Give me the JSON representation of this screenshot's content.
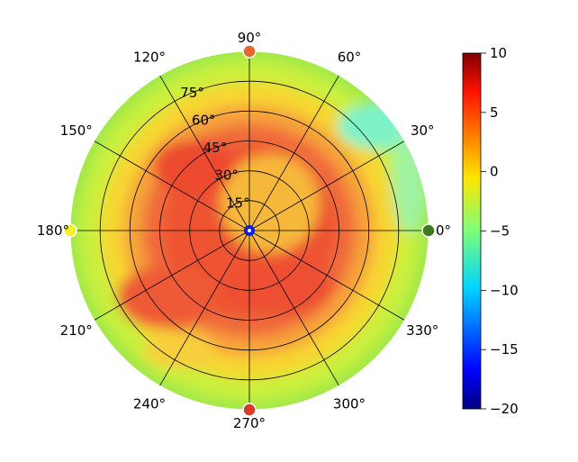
{
  "chart_data": {
    "type": "heatmap",
    "projection": "polar",
    "title": "",
    "angle_ticks": [
      "0°",
      "30°",
      "60°",
      "90°",
      "120°",
      "150°",
      "180°",
      "210°",
      "240°",
      "270°",
      "300°",
      "330°"
    ],
    "radial_ticks": [
      "15°",
      "30°",
      "45°",
      "60°",
      "75°"
    ],
    "radial_range_deg": [
      0,
      90
    ],
    "colorbar": {
      "colormap": "jet",
      "range": [
        -20,
        10
      ],
      "ticks": [
        "10",
        "5",
        "0",
        "−5",
        "−10",
        "−15",
        "−20"
      ]
    },
    "grid": true,
    "field_description_deg_values": {
      "center": -20,
      "inner_core_r_lt_60": 7,
      "ring_r_60_to_75": 3,
      "outer_rim_r_75_to_90": -3,
      "cyan_patch_near_angle_30_outer": -7
    },
    "markers": [
      {
        "angle": 90,
        "color": "#e8662d"
      },
      {
        "angle": 0,
        "color": "#3c7a1e"
      },
      {
        "angle": 180,
        "color": "#f6ef2b"
      },
      {
        "angle": 270,
        "color": "#d83a2a"
      }
    ]
  },
  "colors": {
    "grid": "#000000",
    "background": "#ffffff"
  }
}
